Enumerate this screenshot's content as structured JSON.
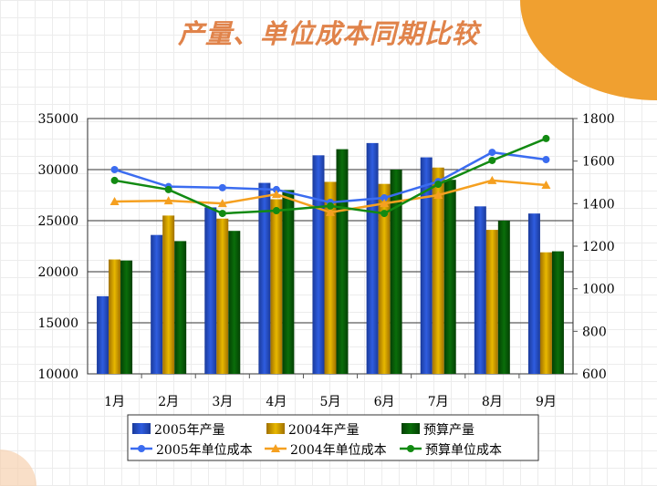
{
  "title": "产量、单位成本同期比较",
  "chart_data": {
    "type": "bar+line",
    "categories": [
      "1月",
      "2月",
      "3月",
      "4月",
      "5月",
      "6月",
      "7月",
      "8月",
      "9月"
    ],
    "left_axis": {
      "ylim": [
        10000,
        35000
      ],
      "ticks": [
        10000,
        15000,
        20000,
        25000,
        30000,
        35000
      ]
    },
    "right_axis": {
      "ylim": [
        600,
        1800
      ],
      "ticks": [
        600,
        800,
        1000,
        1200,
        1400,
        1600,
        1800
      ]
    },
    "bar_series": [
      {
        "name": "2005年产量",
        "color": "#2f5de0",
        "values": [
          17600,
          23600,
          26300,
          28700,
          31400,
          32600,
          31200,
          26400,
          25700
        ]
      },
      {
        "name": "2004年产量",
        "color": "#e8b800",
        "values": [
          21200,
          25500,
          25200,
          27100,
          28800,
          28600,
          30200,
          24100,
          21900
        ]
      },
      {
        "name": "预算产量",
        "color": "#0a6e0a",
        "values": [
          21100,
          23000,
          24000,
          28000,
          32000,
          30000,
          29000,
          25000,
          22000
        ]
      }
    ],
    "line_series": [
      {
        "name": "2005年单位成本",
        "color": "#3b6cf0",
        "marker": "circle",
        "values": [
          1560,
          1480,
          1475,
          1466,
          1406,
          1427,
          1504,
          1641,
          1607
        ]
      },
      {
        "name": "2004年单位成本",
        "color": "#f5a020",
        "marker": "triangle",
        "values": [
          1410,
          1414,
          1401,
          1444,
          1359,
          1401,
          1440,
          1509,
          1487
        ]
      },
      {
        "name": "预算单位成本",
        "color": "#128a12",
        "marker": "circle",
        "values": [
          1509,
          1466,
          1354,
          1367,
          1389,
          1354,
          1491,
          1603,
          1706
        ]
      }
    ],
    "grid": true,
    "legend": "bottom"
  }
}
